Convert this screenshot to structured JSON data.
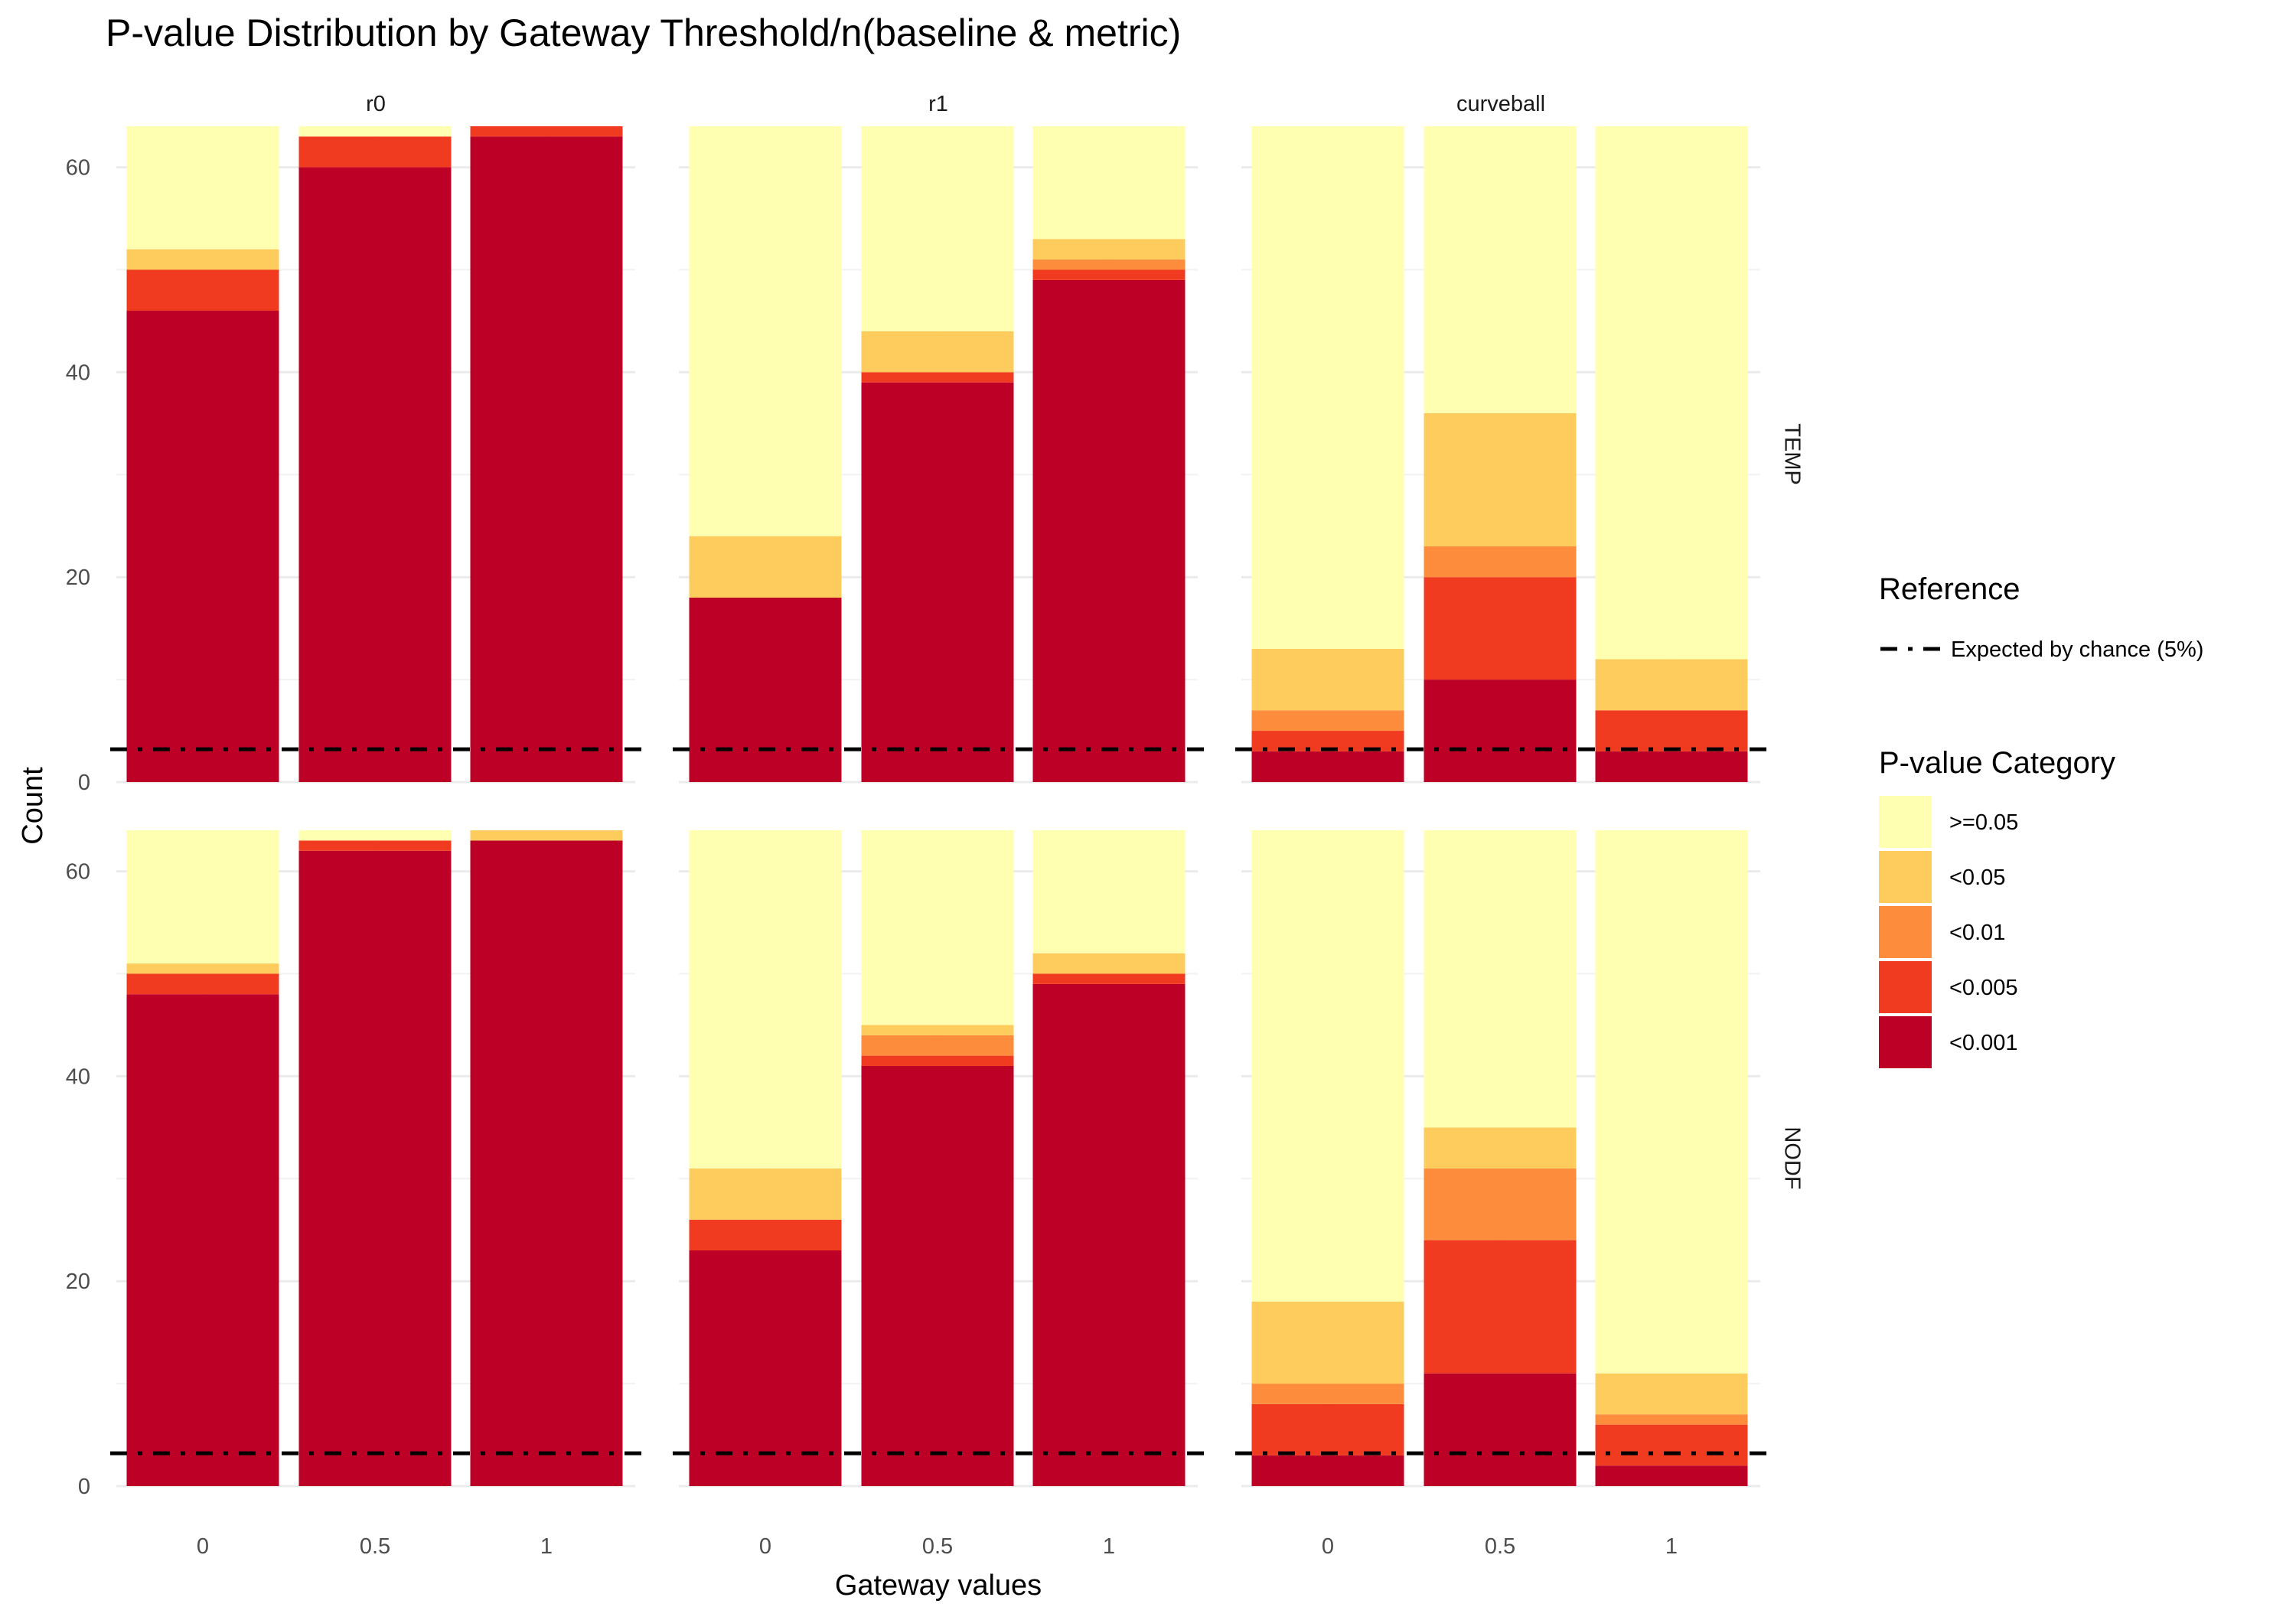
{
  "chart_data": {
    "type": "bar",
    "stacked": true,
    "title": "P-value Distribution by Gateway Threshold/n(baseline & metric)",
    "xlabel": "Gateway values",
    "ylabel": "Count",
    "ylim": [
      0,
      64
    ],
    "yticks": [
      "0",
      "20",
      "40",
      "60"
    ],
    "categories": [
      "0",
      "0.5",
      "1"
    ],
    "facet_columns": [
      "r0",
      "r1",
      "curveball"
    ],
    "facet_rows": [
      "TEMP",
      "NODF"
    ],
    "reference_line": {
      "value": 3.2,
      "label": "Expected by chance (5%)"
    },
    "legend": {
      "reference_title": "Reference",
      "category_title": "P-value Category",
      "placement": "right"
    },
    "categories_pvalue": [
      {
        "name": ">=0.05",
        "color": "#FFFFB2"
      },
      {
        "name": "<0.05",
        "color": "#FECC5C"
      },
      {
        "name": "<0.01",
        "color": "#FD8D3C"
      },
      {
        "name": "<0.005",
        "color": "#F03B20"
      },
      {
        "name": "<0.001",
        "color": "#BD0026"
      }
    ],
    "grid": true,
    "panels": [
      {
        "row": "TEMP",
        "col": "r0",
        "stacks": {
          "0": {
            "<0.001": 46,
            "<0.005": 4,
            "<0.01": 0,
            "<0.05": 2,
            ">=0.05": 12
          },
          "0.5": {
            "<0.001": 60,
            "<0.005": 3,
            "<0.01": 0,
            "<0.05": 0,
            ">=0.05": 1
          },
          "1": {
            "<0.001": 63,
            "<0.005": 1,
            "<0.01": 0,
            "<0.05": 0,
            ">=0.05": 0
          }
        }
      },
      {
        "row": "TEMP",
        "col": "r1",
        "stacks": {
          "0": {
            "<0.001": 18,
            "<0.005": 0,
            "<0.01": 0,
            "<0.05": 6,
            ">=0.05": 40
          },
          "0.5": {
            "<0.001": 39,
            "<0.005": 1,
            "<0.01": 0,
            "<0.05": 4,
            ">=0.05": 20
          },
          "1": {
            "<0.001": 49,
            "<0.005": 1,
            "<0.01": 1,
            "<0.05": 2,
            ">=0.05": 11
          }
        }
      },
      {
        "row": "TEMP",
        "col": "curveball",
        "stacks": {
          "0": {
            "<0.001": 3,
            "<0.005": 2,
            "<0.01": 2,
            "<0.05": 6,
            ">=0.05": 51
          },
          "0.5": {
            "<0.001": 10,
            "<0.005": 10,
            "<0.01": 3,
            "<0.05": 13,
            ">=0.05": 28
          },
          "1": {
            "<0.001": 3,
            "<0.005": 4,
            "<0.01": 0,
            "<0.05": 5,
            ">=0.05": 52
          }
        }
      },
      {
        "row": "NODF",
        "col": "r0",
        "stacks": {
          "0": {
            "<0.001": 48,
            "<0.005": 2,
            "<0.01": 0,
            "<0.05": 1,
            ">=0.05": 13
          },
          "0.5": {
            "<0.001": 62,
            "<0.005": 1,
            "<0.01": 0,
            "<0.05": 0,
            ">=0.05": 1
          },
          "1": {
            "<0.001": 63,
            "<0.005": 0,
            "<0.01": 0,
            "<0.05": 1,
            ">=0.05": 0
          }
        }
      },
      {
        "row": "NODF",
        "col": "r1",
        "stacks": {
          "0": {
            "<0.001": 23,
            "<0.005": 3,
            "<0.01": 0,
            "<0.05": 5,
            ">=0.05": 33
          },
          "0.5": {
            "<0.001": 41,
            "<0.005": 1,
            "<0.01": 2,
            "<0.05": 1,
            ">=0.05": 19
          },
          "1": {
            "<0.001": 49,
            "<0.005": 1,
            "<0.01": 0,
            "<0.05": 2,
            ">=0.05": 12
          }
        }
      },
      {
        "row": "NODF",
        "col": "curveball",
        "stacks": {
          "0": {
            "<0.001": 3,
            "<0.005": 5,
            "<0.01": 2,
            "<0.05": 8,
            ">=0.05": 46
          },
          "0.5": {
            "<0.001": 11,
            "<0.005": 13,
            "<0.01": 7,
            "<0.05": 4,
            ">=0.05": 29
          },
          "1": {
            "<0.001": 2,
            "<0.005": 4,
            "<0.01": 1,
            "<0.05": 4,
            ">=0.05": 53
          }
        }
      }
    ]
  }
}
